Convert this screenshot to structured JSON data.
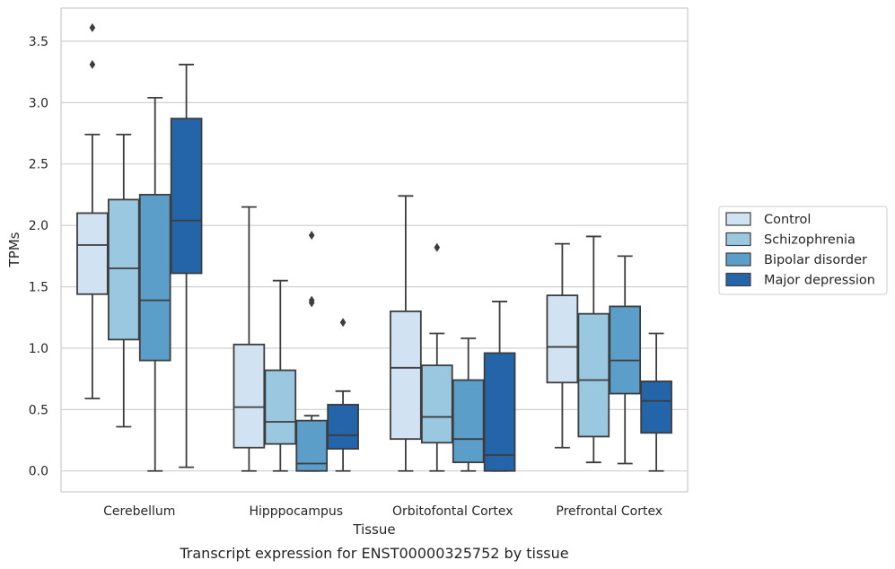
{
  "chart_data": {
    "type": "box",
    "caption": "Transcript expression for ENST00000325752 by tissue",
    "xlabel": "Tissue",
    "ylabel": "TPMs",
    "ylim": [
      -0.17,
      3.77
    ],
    "yticks": [
      0.0,
      0.5,
      1.0,
      1.5,
      2.0,
      2.5,
      3.0,
      3.5
    ],
    "ytick_labels": [
      "0.0",
      "0.5",
      "1.0",
      "1.5",
      "2.0",
      "2.5",
      "3.0",
      "3.5"
    ],
    "grid": "horizontal",
    "legend_position": "right",
    "categories": [
      "Cerebellum",
      "Hipppocampus",
      "Orbitofontal Cortex",
      "Prefrontal Cortex"
    ],
    "series": [
      {
        "name": "Control",
        "color": "#d1e2f2",
        "boxes": [
          {
            "whislo": 0.59,
            "q1": 1.44,
            "med": 1.84,
            "q3": 2.1,
            "whishi": 2.74,
            "fliers": [
              3.61,
              3.31
            ]
          },
          {
            "whislo": 0.0,
            "q1": 0.19,
            "med": 0.52,
            "q3": 1.03,
            "whishi": 2.15,
            "fliers": []
          },
          {
            "whislo": 0.0,
            "q1": 0.26,
            "med": 0.84,
            "q3": 1.3,
            "whishi": 2.24,
            "fliers": []
          },
          {
            "whislo": 0.19,
            "q1": 0.72,
            "med": 1.01,
            "q3": 1.43,
            "whishi": 1.85,
            "fliers": []
          }
        ]
      },
      {
        "name": "Schizophrenia",
        "color": "#9ac8e0",
        "boxes": [
          {
            "whislo": 0.36,
            "q1": 1.07,
            "med": 1.65,
            "q3": 2.21,
            "whishi": 2.74,
            "fliers": []
          },
          {
            "whislo": 0.0,
            "q1": 0.22,
            "med": 0.4,
            "q3": 0.82,
            "whishi": 1.55,
            "fliers": []
          },
          {
            "whislo": 0.0,
            "q1": 0.23,
            "med": 0.44,
            "q3": 0.86,
            "whishi": 1.12,
            "fliers": [
              1.82
            ]
          },
          {
            "whislo": 0.07,
            "q1": 0.28,
            "med": 0.74,
            "q3": 1.28,
            "whishi": 1.91,
            "fliers": []
          }
        ]
      },
      {
        "name": "Bipolar disorder",
        "color": "#5a9ec9",
        "boxes": [
          {
            "whislo": 0.0,
            "q1": 0.9,
            "med": 1.39,
            "q3": 2.25,
            "whishi": 3.04,
            "fliers": []
          },
          {
            "whislo": 0.0,
            "q1": 0.0,
            "med": 0.06,
            "q3": 0.41,
            "whishi": 0.45,
            "fliers": [
              1.92,
              1.39,
              1.37
            ]
          },
          {
            "whislo": 0.0,
            "q1": 0.07,
            "med": 0.26,
            "q3": 0.74,
            "whishi": 1.08,
            "fliers": []
          },
          {
            "whislo": 0.06,
            "q1": 0.63,
            "med": 0.9,
            "q3": 1.34,
            "whishi": 1.75,
            "fliers": []
          }
        ]
      },
      {
        "name": "Major depression",
        "color": "#2464a9",
        "boxes": [
          {
            "whislo": 0.03,
            "q1": 1.61,
            "med": 2.04,
            "q3": 2.87,
            "whishi": 3.31,
            "fliers": []
          },
          {
            "whislo": 0.0,
            "q1": 0.18,
            "med": 0.29,
            "q3": 0.54,
            "whishi": 0.65,
            "fliers": [
              1.21
            ]
          },
          {
            "whislo": 0.0,
            "q1": 0.0,
            "med": 0.13,
            "q3": 0.96,
            "whishi": 1.38,
            "fliers": []
          },
          {
            "whislo": 0.0,
            "q1": 0.31,
            "med": 0.57,
            "q3": 0.73,
            "whishi": 1.12,
            "fliers": []
          }
        ]
      }
    ]
  }
}
